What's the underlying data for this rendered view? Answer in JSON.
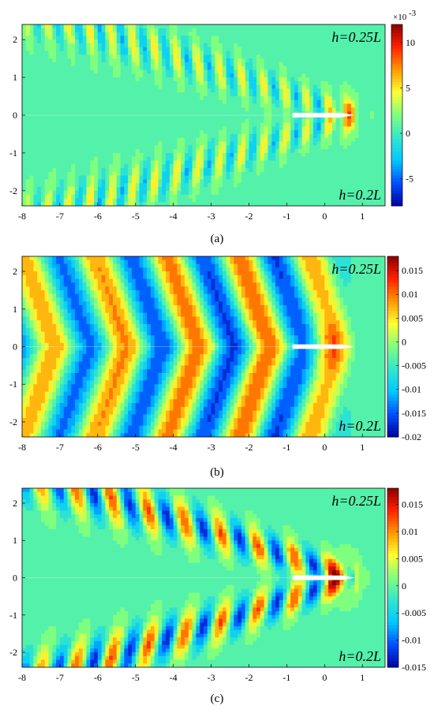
{
  "chart_data": [
    {
      "type": "heatmap",
      "caption": "(a)",
      "annotation_top": "h=0.25L",
      "annotation_bottom": "h=0.2L",
      "xlim": [
        -8,
        1.6
      ],
      "ylim": [
        -2.4,
        2.4
      ],
      "xticks": [
        -8,
        -7,
        -6,
        -5,
        -4,
        -3,
        -2,
        -1,
        0,
        1
      ],
      "yticks": [
        2,
        1,
        0,
        -1,
        -2
      ],
      "colorbar": {
        "multiplier": "×10",
        "exponent": "-3",
        "min": -8,
        "max": 12,
        "ticks": [
          10,
          5,
          0,
          -5
        ]
      },
      "colors": [
        "#0000a0",
        "#0050ff",
        "#00c8ff",
        "#33e6cc",
        "#7fff7f",
        "#ffff33",
        "#ff9900",
        "#ff2200",
        "#8b0000"
      ],
      "wave": {
        "pattern": "divergent",
        "amplitude": 0.55,
        "wavelength": 0.55
      }
    },
    {
      "type": "heatmap",
      "caption": "(b)",
      "annotation_top": "h=0.25L",
      "annotation_bottom": "h=0.2L",
      "xlim": [
        -8,
        1.6
      ],
      "ylim": [
        -2.4,
        2.4
      ],
      "xticks": [
        -8,
        -7,
        -6,
        -5,
        -4,
        -3,
        -2,
        -1,
        0,
        1
      ],
      "yticks": [
        2,
        1,
        0,
        -1,
        -2
      ],
      "colorbar": {
        "multiplier": "",
        "exponent": "",
        "min": -0.02,
        "max": 0.018,
        "ticks": [
          0.015,
          0.01,
          0.005,
          0,
          -0.005,
          -0.01,
          -0.015,
          -0.02
        ]
      },
      "colors": [
        "#0000a0",
        "#0050ff",
        "#00c8ff",
        "#33e6cc",
        "#7fff7f",
        "#ffff33",
        "#ff9900",
        "#ff2200",
        "#8b0000"
      ],
      "wave": {
        "pattern": "transverse",
        "amplitude": 1.0,
        "wavelength": 1.9
      }
    },
    {
      "type": "heatmap",
      "caption": "(c)",
      "annotation_top": "h=0.25L",
      "annotation_bottom": "h=0.2L",
      "xlim": [
        -8,
        1.6
      ],
      "ylim": [
        -2.4,
        2.4
      ],
      "xticks": [
        -8,
        -7,
        -6,
        -5,
        -4,
        -3,
        -2,
        -1,
        0,
        1
      ],
      "yticks": [
        2,
        1,
        0,
        -1,
        -2
      ],
      "colorbar": {
        "multiplier": "",
        "exponent": "",
        "min": -0.015,
        "max": 0.018,
        "ticks": [
          0.015,
          0.01,
          0.005,
          0,
          -0.005,
          -0.01,
          -0.015
        ]
      },
      "colors": [
        "#0000a0",
        "#0050ff",
        "#00c8ff",
        "#33e6cc",
        "#7fff7f",
        "#ffff33",
        "#ff9900",
        "#ff2200",
        "#8b0000"
      ],
      "wave": {
        "pattern": "divergent",
        "amplitude": 1.0,
        "wavelength": 0.9
      }
    }
  ]
}
